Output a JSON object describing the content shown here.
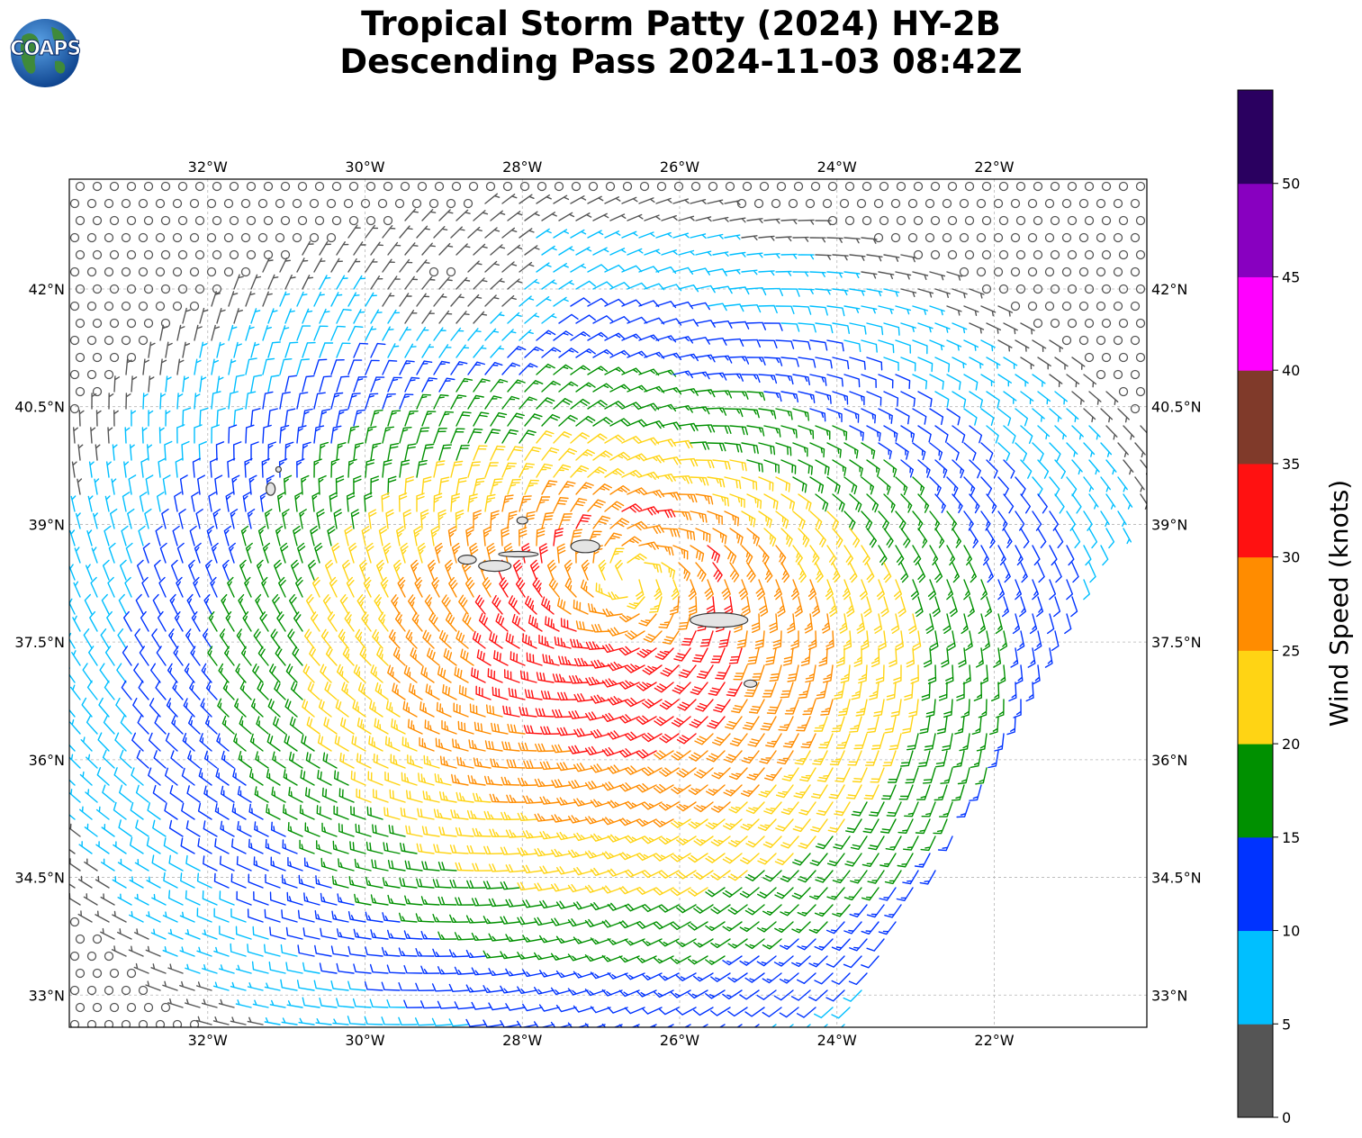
{
  "title": {
    "line1": "Tropical Storm Patty (2024) HY-2B",
    "line2": "Descending Pass 2024-11-03 08:42Z"
  },
  "logo": {
    "text": "COAPS"
  },
  "map": {
    "lon_ticks": [
      "32°W",
      "30°W",
      "28°W",
      "26°W",
      "24°W",
      "22°W"
    ],
    "lat_ticks": [
      "42°N",
      "40.5°N",
      "39°N",
      "37.5°N",
      "36°N",
      "34.5°N",
      "33°N"
    ],
    "grid": true,
    "storm_center": {
      "lon": -26.6,
      "lat": 38.3
    }
  },
  "colorbar": {
    "label": "Wind Speed (knots)",
    "tick_labels": [
      "0",
      "5",
      "10",
      "15",
      "20",
      "25",
      "30",
      "35",
      "40",
      "45",
      "50"
    ],
    "bins": [
      {
        "min": 0,
        "max": 5,
        "color": "#555555"
      },
      {
        "min": 5,
        "max": 10,
        "color": "#00bfff"
      },
      {
        "min": 10,
        "max": 15,
        "color": "#0033ff"
      },
      {
        "min": 15,
        "max": 20,
        "color": "#009000"
      },
      {
        "min": 20,
        "max": 25,
        "color": "#ffd414"
      },
      {
        "min": 25,
        "max": 30,
        "color": "#ff8c00"
      },
      {
        "min": 30,
        "max": 35,
        "color": "#ff1111"
      },
      {
        "min": 35,
        "max": 40,
        "color": "#803a2a"
      },
      {
        "min": 40,
        "max": 45,
        "color": "#ff00ff"
      },
      {
        "min": 45,
        "max": 50,
        "color": "#8800c0"
      },
      {
        "min": 50,
        "max": 55,
        "color": "#2a0060"
      }
    ]
  },
  "islands": [
    "Flores",
    "Corvo",
    "Faial",
    "Pico",
    "São Jorge",
    "Graciosa",
    "Terceira",
    "São Miguel",
    "Santa Maria"
  ]
}
